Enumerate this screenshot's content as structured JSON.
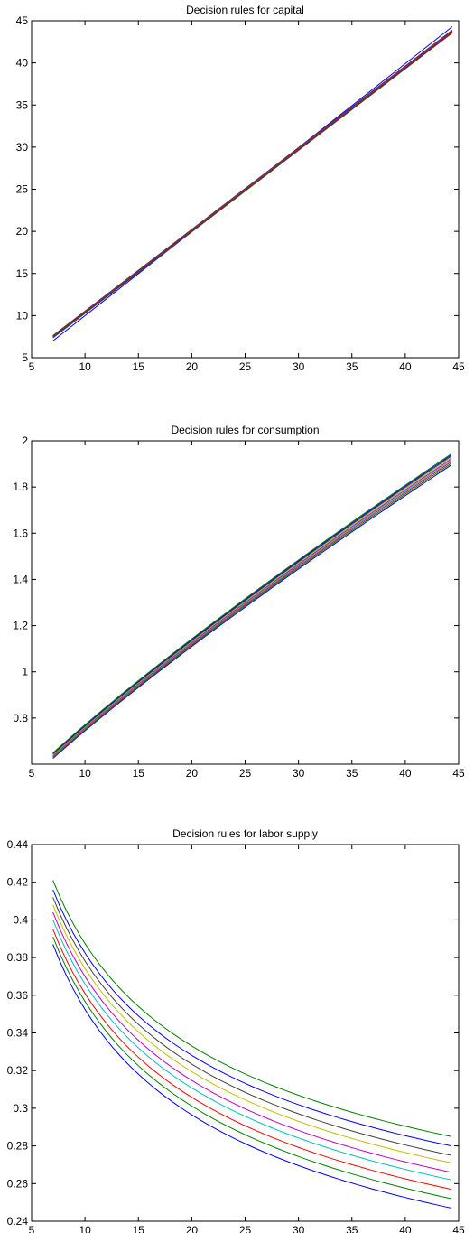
{
  "chart_data": [
    {
      "type": "line",
      "title": "Decision rules for capital",
      "xlabel": "",
      "ylabel": "",
      "xlim": [
        5,
        45
      ],
      "ylim": [
        5,
        45
      ],
      "xticks": [
        5,
        10,
        15,
        20,
        25,
        30,
        35,
        40,
        45
      ],
      "yticks": [
        5,
        10,
        15,
        20,
        25,
        30,
        35,
        40,
        45
      ],
      "x": [
        7,
        44.4
      ],
      "series": [
        {
          "color": "#0000ff",
          "values": [
            7.0,
            44.3
          ]
        },
        {
          "color": "#008000",
          "values": [
            7.35,
            43.55
          ]
        },
        {
          "color": "#ff0000",
          "values": [
            7.4,
            43.6
          ]
        },
        {
          "color": "#00bfbf",
          "values": [
            7.45,
            43.65
          ]
        },
        {
          "color": "#bf00bf",
          "values": [
            7.5,
            43.7
          ]
        },
        {
          "color": "#bfbf00",
          "values": [
            7.55,
            43.75
          ]
        },
        {
          "color": "#404040",
          "values": [
            7.6,
            43.8
          ]
        },
        {
          "color": "#0000ff",
          "values": [
            7.45,
            43.65
          ]
        },
        {
          "color": "#008000",
          "values": [
            7.5,
            43.7
          ]
        },
        {
          "color": "#ff0000",
          "values": [
            7.55,
            43.75
          ]
        },
        {
          "color": "#bf00bf",
          "values": [
            7.6,
            43.85
          ]
        },
        {
          "color": "#404040",
          "values": [
            7.62,
            43.9
          ]
        }
      ]
    },
    {
      "type": "line",
      "title": "Decision rules for consumption",
      "xlabel": "",
      "ylabel": "",
      "xlim": [
        5,
        45
      ],
      "ylim": [
        0.6,
        2.0
      ],
      "xticks": [
        5,
        10,
        15,
        20,
        25,
        30,
        35,
        40,
        45
      ],
      "yticks": [
        0.8,
        1,
        1.2,
        1.4,
        1.6,
        1.8,
        2
      ],
      "x0": 7,
      "x1": 44.3,
      "exponent": 0.84,
      "series": [
        {
          "color": "#0000ff",
          "start": 0.625,
          "end": 1.895
        },
        {
          "color": "#008000",
          "start": 0.628,
          "end": 1.902
        },
        {
          "color": "#ff0000",
          "start": 0.631,
          "end": 1.909
        },
        {
          "color": "#00bfbf",
          "start": 0.634,
          "end": 1.915
        },
        {
          "color": "#bf00bf",
          "start": 0.637,
          "end": 1.921
        },
        {
          "color": "#bfbf00",
          "start": 0.64,
          "end": 1.927
        },
        {
          "color": "#404040",
          "start": 0.643,
          "end": 1.933
        },
        {
          "color": "#0000ff",
          "start": 0.646,
          "end": 1.938
        },
        {
          "color": "#008000",
          "start": 0.649,
          "end": 1.943
        }
      ]
    },
    {
      "type": "line",
      "title": "Decision rules for labor supply",
      "xlabel": "",
      "ylabel": "",
      "xlim": [
        5,
        45
      ],
      "ylim": [
        0.24,
        0.44
      ],
      "xticks": [
        5,
        10,
        15,
        20,
        25,
        30,
        35,
        40,
        45
      ],
      "yticks": [
        0.24,
        0.26,
        0.28,
        0.3,
        0.32,
        0.34,
        0.36,
        0.38,
        0.4,
        0.42,
        0.44
      ],
      "x0": 7,
      "x1": 44.3,
      "exponent": -0.35,
      "series": [
        {
          "color": "#0000ff",
          "start": 0.387,
          "end": 0.247
        },
        {
          "color": "#008000",
          "start": 0.391,
          "end": 0.252
        },
        {
          "color": "#ff0000",
          "start": 0.395,
          "end": 0.257
        },
        {
          "color": "#00bfbf",
          "start": 0.4,
          "end": 0.262
        },
        {
          "color": "#bf00bf",
          "start": 0.404,
          "end": 0.266
        },
        {
          "color": "#bfbf00",
          "start": 0.408,
          "end": 0.271
        },
        {
          "color": "#404040",
          "start": 0.412,
          "end": 0.275
        },
        {
          "color": "#0000ff",
          "start": 0.416,
          "end": 0.28
        },
        {
          "color": "#008000",
          "start": 0.421,
          "end": 0.285
        }
      ]
    }
  ]
}
